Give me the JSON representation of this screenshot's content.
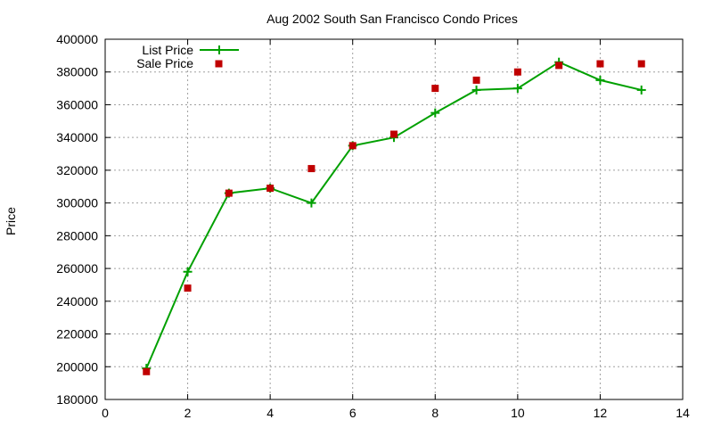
{
  "chart_data": {
    "type": "line",
    "title": "Aug 2002 South San Francisco Condo Prices",
    "xlabel": "",
    "ylabel": "Price",
    "xlim": [
      0,
      14
    ],
    "ylim": [
      180000,
      400000
    ],
    "x_ticks": [
      0,
      2,
      4,
      6,
      8,
      10,
      12,
      14
    ],
    "y_ticks": [
      180000,
      200000,
      220000,
      240000,
      260000,
      280000,
      300000,
      320000,
      340000,
      360000,
      380000,
      400000
    ],
    "x_tick_labels": [
      "0",
      "2",
      "4",
      "6",
      "8",
      "10",
      "12",
      "14"
    ],
    "y_tick_labels": [
      "180000",
      "200000",
      "220000",
      "240000",
      "260000",
      "280000",
      "300000",
      "320000",
      "340000",
      "360000",
      "380000",
      "400000"
    ],
    "grid": true,
    "legend_position": "top-left",
    "series": [
      {
        "name": "List Price",
        "style": "linespoints",
        "marker": "plus",
        "color": "#00a000",
        "x": [
          1,
          2,
          3,
          4,
          5,
          6,
          7,
          8,
          9,
          10,
          11,
          12,
          13
        ],
        "y": [
          199000,
          258000,
          306000,
          309000,
          300000,
          335000,
          340000,
          355000,
          369000,
          370000,
          386000,
          375000,
          369000
        ]
      },
      {
        "name": "Sale Price",
        "style": "points",
        "marker": "square",
        "color": "#c00000",
        "x": [
          1,
          2,
          3,
          4,
          5,
          6,
          7,
          8,
          9,
          10,
          11,
          12,
          13
        ],
        "y": [
          197000,
          248000,
          306000,
          309000,
          321000,
          335000,
          342000,
          370000,
          375000,
          380000,
          384000,
          385000,
          385000
        ]
      }
    ]
  }
}
